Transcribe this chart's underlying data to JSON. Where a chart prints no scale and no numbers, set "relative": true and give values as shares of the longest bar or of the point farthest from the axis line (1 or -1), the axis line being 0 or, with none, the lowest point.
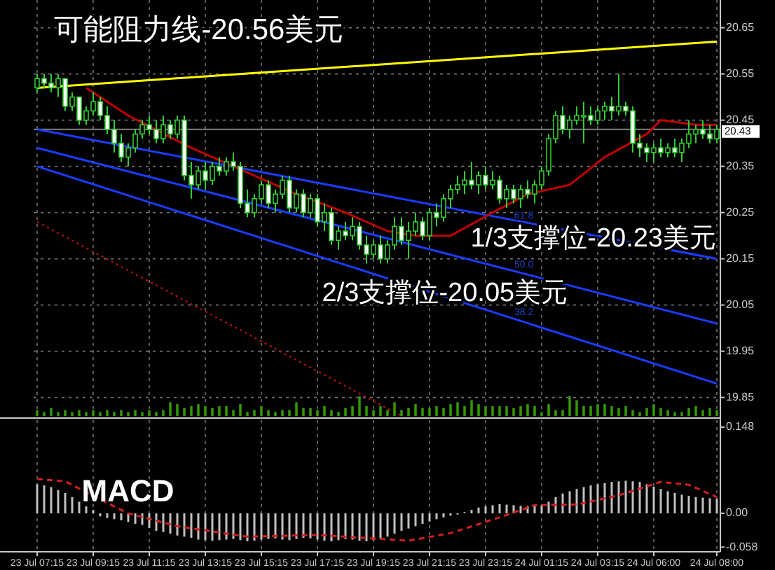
{
  "chart_data": [
    {
      "type": "candlestick",
      "color": "#33cc33",
      "tick_labels": "y",
      "grid": true,
      "categories": [
        null,
        null,
        null,
        null,
        null,
        null,
        null,
        null,
        null,
        null,
        null,
        null,
        null,
        null,
        null,
        null,
        null,
        null,
        null,
        null,
        null,
        null,
        null,
        null,
        null,
        null,
        null,
        null,
        null,
        null,
        null,
        null,
        null,
        null,
        null,
        null,
        null,
        null,
        null,
        null,
        null,
        null,
        null,
        null,
        null,
        null,
        null,
        null,
        null,
        null,
        null,
        null,
        null,
        null,
        null,
        null,
        null,
        null,
        null,
        null,
        null,
        null,
        null,
        null,
        null,
        null,
        null,
        null,
        null,
        null,
        null,
        null,
        null,
        null,
        null,
        null,
        null,
        null,
        null,
        null,
        null,
        null,
        null,
        null,
        null,
        null,
        null,
        null,
        null,
        null,
        null,
        null,
        null,
        null,
        null,
        null,
        null,
        null
      ],
      "ohlc": [
        [
          20.52,
          20.55,
          20.51,
          20.54
        ],
        [
          20.54,
          20.55,
          20.52,
          20.53
        ],
        [
          20.53,
          20.55,
          20.51,
          20.52
        ],
        [
          20.52,
          20.55,
          20.5,
          20.54
        ],
        [
          20.54,
          20.54,
          20.47,
          20.48
        ],
        [
          20.48,
          20.51,
          20.47,
          20.5
        ],
        [
          20.5,
          20.5,
          20.44,
          20.45
        ],
        [
          20.45,
          20.48,
          20.44,
          20.47
        ],
        [
          20.47,
          20.51,
          20.46,
          20.49
        ],
        [
          20.49,
          20.5,
          20.45,
          20.46
        ],
        [
          20.46,
          20.48,
          20.42,
          20.43
        ],
        [
          20.43,
          20.45,
          20.38,
          20.4
        ],
        [
          20.4,
          20.42,
          20.36,
          20.37
        ],
        [
          20.37,
          20.4,
          20.35,
          20.39
        ],
        [
          20.39,
          20.43,
          20.38,
          20.42
        ],
        [
          20.42,
          20.45,
          20.41,
          20.44
        ],
        [
          20.44,
          20.46,
          20.42,
          20.43
        ],
        [
          20.43,
          20.45,
          20.4,
          20.41
        ],
        [
          20.41,
          20.46,
          20.4,
          20.44
        ],
        [
          20.44,
          20.45,
          20.41,
          20.42
        ],
        [
          20.42,
          20.46,
          20.41,
          20.45
        ],
        [
          20.45,
          20.46,
          20.32,
          20.33
        ],
        [
          20.33,
          20.36,
          20.28,
          20.31
        ],
        [
          20.31,
          20.35,
          20.3,
          20.34
        ],
        [
          20.34,
          20.36,
          20.3,
          20.32
        ],
        [
          20.32,
          20.36,
          20.31,
          20.35
        ],
        [
          20.35,
          20.37,
          20.33,
          20.34
        ],
        [
          20.34,
          20.37,
          20.33,
          20.36
        ],
        [
          20.36,
          20.38,
          20.34,
          20.35
        ],
        [
          20.35,
          20.36,
          20.26,
          20.27
        ],
        [
          20.27,
          20.3,
          20.24,
          20.25
        ],
        [
          20.25,
          20.29,
          20.24,
          20.28
        ],
        [
          20.28,
          20.32,
          20.27,
          20.31
        ],
        [
          20.31,
          20.32,
          20.26,
          20.27
        ],
        [
          20.27,
          20.3,
          20.25,
          20.29
        ],
        [
          20.29,
          20.33,
          20.28,
          20.32
        ],
        [
          20.32,
          20.33,
          20.25,
          20.26
        ],
        [
          20.26,
          20.3,
          20.25,
          20.29
        ],
        [
          20.29,
          20.3,
          20.24,
          20.25
        ],
        [
          20.25,
          20.29,
          20.24,
          20.28
        ],
        [
          20.28,
          20.29,
          20.22,
          20.23
        ],
        [
          20.23,
          20.27,
          20.21,
          20.25
        ],
        [
          20.25,
          20.26,
          20.18,
          20.19
        ],
        [
          20.19,
          20.22,
          20.17,
          20.21
        ],
        [
          20.21,
          20.23,
          20.19,
          20.2
        ],
        [
          20.2,
          20.24,
          20.19,
          20.22
        ],
        [
          20.22,
          20.23,
          20.17,
          20.18
        ],
        [
          20.18,
          20.2,
          20.14,
          20.16
        ],
        [
          20.16,
          20.19,
          20.15,
          20.18
        ],
        [
          20.18,
          20.2,
          20.14,
          20.15
        ],
        [
          20.15,
          20.19,
          20.14,
          20.18
        ],
        [
          20.18,
          20.24,
          20.17,
          20.22
        ],
        [
          20.22,
          20.24,
          20.18,
          20.19
        ],
        [
          20.19,
          20.23,
          20.15,
          20.21
        ],
        [
          20.21,
          20.25,
          20.2,
          20.23
        ],
        [
          20.23,
          20.24,
          20.19,
          20.2
        ],
        [
          20.2,
          20.26,
          20.19,
          20.25
        ],
        [
          20.25,
          20.27,
          20.22,
          20.24
        ],
        [
          20.24,
          20.29,
          20.23,
          20.28
        ],
        [
          20.28,
          20.31,
          20.26,
          20.3
        ],
        [
          20.3,
          20.33,
          20.29,
          20.31
        ],
        [
          20.31,
          20.34,
          20.29,
          20.32
        ],
        [
          20.32,
          20.36,
          20.3,
          20.31
        ],
        [
          20.31,
          20.34,
          20.29,
          20.33
        ],
        [
          20.33,
          20.35,
          20.3,
          20.31
        ],
        [
          20.31,
          20.34,
          20.3,
          20.32
        ],
        [
          20.32,
          20.33,
          20.27,
          20.28
        ],
        [
          20.28,
          20.31,
          20.26,
          20.3
        ],
        [
          20.3,
          20.31,
          20.27,
          20.28
        ],
        [
          20.28,
          20.31,
          20.26,
          20.3
        ],
        [
          20.3,
          20.32,
          20.28,
          20.29
        ],
        [
          20.29,
          20.32,
          20.27,
          20.31
        ],
        [
          20.31,
          20.35,
          20.3,
          20.34
        ],
        [
          20.34,
          20.42,
          20.33,
          20.41
        ],
        [
          20.41,
          20.47,
          20.4,
          20.46
        ],
        [
          20.46,
          20.48,
          20.42,
          20.43
        ],
        [
          20.43,
          20.46,
          20.41,
          20.45
        ],
        [
          20.45,
          20.48,
          20.44,
          20.46
        ],
        [
          20.46,
          20.49,
          20.4,
          20.46
        ],
        [
          20.46,
          20.48,
          20.44,
          20.45
        ],
        [
          20.45,
          20.48,
          20.44,
          20.47
        ],
        [
          20.47,
          20.49,
          20.45,
          20.48
        ],
        [
          20.48,
          20.5,
          20.45,
          20.47
        ],
        [
          20.47,
          20.55,
          20.46,
          20.48
        ],
        [
          20.48,
          20.49,
          20.46,
          20.47
        ],
        [
          20.47,
          20.48,
          20.38,
          20.4
        ],
        [
          20.4,
          20.42,
          20.37,
          20.39
        ],
        [
          20.39,
          20.4,
          20.36,
          20.38
        ],
        [
          20.38,
          20.4,
          20.36,
          20.39
        ],
        [
          20.39,
          20.41,
          20.37,
          20.38
        ],
        [
          20.38,
          20.4,
          20.37,
          20.39
        ],
        [
          20.39,
          20.41,
          20.37,
          20.38
        ],
        [
          20.38,
          20.41,
          20.36,
          20.4
        ],
        [
          20.4,
          20.45,
          20.39,
          20.42
        ],
        [
          20.42,
          20.44,
          20.4,
          20.43
        ],
        [
          20.43,
          20.45,
          20.41,
          20.42
        ],
        [
          20.42,
          20.44,
          20.4,
          20.41
        ],
        [
          20.41,
          20.44,
          20.4,
          20.43
        ]
      ],
      "series": [
        {
          "type": "line",
          "color": "#ffff00",
          "values": [
            20.52,
            null,
            null,
            null,
            null,
            null,
            null,
            null,
            null,
            null,
            null,
            null,
            null,
            null,
            null,
            null,
            null,
            null,
            null,
            null,
            null,
            null,
            null,
            null,
            null,
            null,
            null,
            null,
            null,
            null,
            null,
            null,
            null,
            null,
            null,
            null,
            null,
            null,
            null,
            null,
            null,
            null,
            null,
            null,
            null,
            null,
            null,
            null,
            null,
            null,
            null,
            null,
            null,
            null,
            null,
            null,
            null,
            null,
            null,
            null,
            null,
            null,
            null,
            null,
            null,
            null,
            null,
            null,
            null,
            null,
            null,
            null,
            null,
            null,
            null,
            null,
            null,
            null,
            null,
            null,
            null,
            null,
            null,
            null,
            null,
            null,
            null,
            null,
            null,
            null,
            null,
            null,
            null,
            null,
            null,
            null,
            null,
            20.62
          ]
        },
        {
          "type": "line",
          "color": "#1a3cff",
          "values": [
            20.43,
            null,
            null,
            null,
            null,
            null,
            null,
            null,
            null,
            null,
            null,
            null,
            null,
            null,
            null,
            null,
            null,
            null,
            null,
            null,
            null,
            null,
            null,
            null,
            null,
            null,
            null,
            null,
            null,
            null,
            null,
            null,
            null,
            null,
            null,
            null,
            null,
            null,
            null,
            null,
            null,
            null,
            null,
            null,
            null,
            null,
            null,
            null,
            null,
            null,
            null,
            null,
            null,
            null,
            null,
            null,
            null,
            null,
            null,
            null,
            null,
            null,
            null,
            null,
            null,
            null,
            null,
            null,
            null,
            null,
            null,
            null,
            null,
            null,
            null,
            null,
            null,
            null,
            null,
            null,
            null,
            null,
            null,
            null,
            null,
            null,
            null,
            null,
            null,
            null,
            null,
            null,
            null,
            null,
            null,
            null,
            null,
            20.15
          ]
        },
        {
          "type": "line",
          "color": "#1a3cff",
          "values": [
            20.39,
            null,
            null,
            null,
            null,
            null,
            null,
            null,
            null,
            null,
            null,
            null,
            null,
            null,
            null,
            null,
            null,
            null,
            null,
            null,
            null,
            null,
            null,
            null,
            null,
            null,
            null,
            null,
            null,
            null,
            null,
            null,
            null,
            null,
            null,
            null,
            null,
            null,
            null,
            null,
            null,
            null,
            null,
            null,
            null,
            null,
            null,
            null,
            null,
            null,
            null,
            null,
            null,
            null,
            null,
            null,
            null,
            null,
            null,
            null,
            null,
            null,
            null,
            null,
            null,
            null,
            null,
            null,
            null,
            null,
            null,
            null,
            null,
            null,
            null,
            null,
            null,
            null,
            null,
            null,
            null,
            null,
            null,
            null,
            null,
            null,
            null,
            null,
            null,
            null,
            null,
            null,
            null,
            null,
            null,
            null,
            null,
            20.01
          ]
        },
        {
          "type": "line",
          "color": "#1a3cff",
          "values": [
            20.35,
            null,
            null,
            null,
            null,
            null,
            null,
            null,
            null,
            null,
            null,
            null,
            null,
            null,
            null,
            null,
            null,
            null,
            null,
            null,
            null,
            null,
            null,
            null,
            null,
            null,
            null,
            null,
            null,
            null,
            null,
            null,
            null,
            null,
            null,
            null,
            null,
            null,
            null,
            null,
            null,
            null,
            null,
            null,
            null,
            null,
            null,
            null,
            null,
            null,
            null,
            null,
            null,
            null,
            null,
            null,
            null,
            null,
            null,
            null,
            null,
            null,
            null,
            null,
            null,
            null,
            null,
            null,
            null,
            null,
            null,
            null,
            null,
            null,
            null,
            null,
            null,
            null,
            null,
            null,
            null,
            null,
            null,
            null,
            null,
            null,
            null,
            null,
            null,
            null,
            null,
            null,
            null,
            null,
            null,
            null,
            null,
            19.88
          ]
        },
        {
          "type": "line",
          "color": "#c00000",
          "values": [
            null,
            null,
            null,
            null,
            null,
            null,
            null,
            20.52,
            null,
            null,
            null,
            null,
            null,
            20.46,
            null,
            null,
            null,
            null,
            null,
            null,
            null,
            null,
            20.39,
            null,
            null,
            null,
            null,
            null,
            20.35,
            null,
            null,
            null,
            null,
            null,
            null,
            null,
            null,
            20.29,
            null,
            null,
            null,
            null,
            null,
            null,
            20.25,
            null,
            null,
            null,
            null,
            null,
            20.21,
            null,
            null,
            null,
            20.2,
            null,
            null,
            null,
            null,
            20.2,
            null,
            null,
            null,
            null,
            null,
            20.25,
            null,
            null,
            null,
            null,
            20.29,
            null,
            null,
            null,
            null,
            null,
            20.31,
            null,
            null,
            null,
            null,
            20.37,
            null,
            null,
            null,
            null,
            null,
            20.42,
            null,
            20.45,
            null,
            null,
            null,
            null,
            20.44,
            null,
            null,
            20.44
          ]
        },
        {
          "type": "line",
          "color": "#b01010",
          "line_style": "dotted",
          "values": [
            20.23,
            null,
            null,
            null,
            null,
            null,
            null,
            null,
            null,
            null,
            null,
            null,
            null,
            null,
            null,
            null,
            null,
            null,
            null,
            null,
            null,
            null,
            null,
            null,
            null,
            null,
            null,
            null,
            null,
            null,
            null,
            null,
            null,
            null,
            null,
            null,
            null,
            null,
            null,
            null,
            null,
            null,
            null,
            null,
            null,
            null,
            null,
            null,
            null,
            null,
            null,
            null,
            19.81,
            null,
            null,
            null,
            null,
            null,
            null,
            null,
            null,
            null,
            null,
            null,
            null,
            null,
            null,
            null,
            null,
            null,
            null,
            null,
            null,
            null,
            null,
            null,
            null,
            null,
            null,
            null,
            null,
            null,
            null,
            null,
            null,
            null,
            null,
            null,
            null,
            null,
            null,
            null,
            null,
            null,
            null,
            null,
            null,
            null
          ]
        }
      ],
      "ylim": [
        19.81,
        20.71
      ],
      "yticks": [
        19.85,
        19.95,
        20.05,
        20.15,
        20.25,
        20.35,
        20.45,
        20.55,
        20.65
      ],
      "ref_lines": [
        {
          "axis": "y",
          "value": 20.43,
          "label": "20.43",
          "color": "#808080"
        }
      ],
      "annotations": [
        "可能阻力线-20.56美元",
        "1/3支撑位-20.23美元",
        "2/3支撑位-20.05美元",
        "61.8",
        "50.0",
        "38.2"
      ]
    },
    {
      "type": "bar",
      "relative": true,
      "tick_labels": false,
      "color": "#339900",
      "categories": [
        null,
        null,
        null,
        null,
        null,
        null,
        null,
        null,
        null,
        null,
        null,
        null,
        null,
        null,
        null,
        null,
        null,
        null,
        null,
        null,
        null,
        null,
        null,
        null,
        null,
        null,
        null,
        null,
        null,
        null,
        null,
        null,
        null,
        null,
        null,
        null,
        null,
        null,
        null,
        null,
        null,
        null,
        null,
        null,
        null,
        null,
        null,
        null,
        null,
        null,
        null,
        null,
        null,
        null,
        null,
        null,
        null,
        null,
        null,
        null,
        null,
        null,
        null,
        null,
        null,
        null,
        null,
        null,
        null,
        null,
        null,
        null,
        null,
        null,
        null,
        null,
        null,
        null,
        null,
        null,
        null,
        null,
        null,
        null,
        null,
        null,
        null,
        null,
        null,
        null,
        null,
        null,
        null,
        null,
        null,
        null,
        null,
        null
      ],
      "values": [
        0.3,
        0.2,
        0.4,
        0.2,
        0.3,
        0.2,
        0.3,
        0.2,
        0.3,
        0.2,
        0.3,
        0.2,
        0.3,
        0.2,
        0.3,
        0.2,
        0.3,
        0.2,
        0.3,
        0.7,
        0.6,
        0.4,
        0.5,
        0.6,
        0.5,
        0.4,
        0.5,
        0.5,
        0.3,
        0.6,
        0.2,
        0.3,
        0.5,
        0.3,
        0.2,
        0.3,
        0.3,
        0.7,
        0.4,
        0.4,
        0.3,
        0.5,
        0.3,
        0.2,
        0.4,
        0.5,
        1.0,
        0.5,
        0.3,
        0.5,
        0.3,
        0.7,
        0.3,
        0.4,
        0.6,
        0.4,
        0.4,
        0.5,
        0.4,
        0.6,
        0.7,
        0.5,
        0.8,
        0.6,
        0.5,
        0.5,
        0.5,
        0.5,
        0.4,
        0.5,
        0.6,
        0.5,
        0.2,
        0.6,
        0.3,
        0.3,
        1.0,
        0.8,
        0.5,
        0.5,
        0.6,
        0.6,
        0.5,
        0.4,
        0.5,
        0.3,
        0.2,
        0.4,
        0.6,
        0.4,
        0.3,
        0.2,
        0.2,
        0.4,
        0.5,
        0.3,
        0.4,
        0.3
      ]
    },
    {
      "type": "bar",
      "title": "MACD",
      "grid": "x",
      "categories": [
        "23 Jul 07:15",
        null,
        null,
        null,
        null,
        null,
        null,
        null,
        "23 Jul 09:15",
        null,
        null,
        null,
        null,
        null,
        null,
        null,
        "23 Jul 11:15",
        null,
        null,
        null,
        null,
        null,
        null,
        null,
        "23 Jul 13:15",
        null,
        null,
        null,
        null,
        null,
        null,
        null,
        "23 Jul 15:15",
        null,
        null,
        null,
        null,
        null,
        null,
        null,
        "23 Jul 17:15",
        null,
        null,
        null,
        null,
        null,
        null,
        null,
        "23 Jul 19:15",
        null,
        null,
        null,
        null,
        null,
        null,
        null,
        "23 Jul 21:15",
        null,
        null,
        null,
        null,
        null,
        null,
        null,
        "23 Jul 23:15",
        null,
        null,
        null,
        null,
        null,
        null,
        null,
        "24 Jul 01:15",
        null,
        null,
        null,
        null,
        null,
        null,
        null,
        "24 Jul 03:15",
        null,
        null,
        null,
        null,
        null,
        null,
        null,
        "24 Jul 06:00",
        null,
        null,
        null,
        null,
        null,
        null,
        null,
        null,
        "24 Jul 08:00"
      ],
      "series": [
        {
          "type": "bar",
          "color": "#c0c0c0",
          "values": [
            0.05,
            0.048,
            0.045,
            0.04,
            0.035,
            0.028,
            0.02,
            0.012,
            0.006,
            -0.005,
            -0.008,
            -0.01,
            -0.012,
            -0.015,
            -0.018,
            -0.02,
            -0.025,
            -0.03,
            -0.032,
            -0.035,
            -0.038,
            -0.04,
            -0.042,
            -0.045,
            -0.046,
            -0.047,
            -0.046,
            -0.045,
            -0.044,
            -0.046,
            -0.048,
            -0.047,
            -0.045,
            -0.044,
            -0.043,
            -0.045,
            -0.046,
            -0.044,
            -0.042,
            -0.043,
            -0.045,
            -0.047,
            -0.048,
            -0.046,
            -0.044,
            -0.045,
            -0.047,
            -0.048,
            -0.046,
            -0.043,
            -0.04,
            -0.035,
            -0.03,
            -0.026,
            -0.022,
            -0.018,
            -0.014,
            -0.01,
            -0.007,
            -0.004,
            -0.002,
            0.002,
            0.006,
            0.01,
            0.012,
            0.014,
            0.016,
            0.015,
            0.014,
            0.013,
            0.012,
            0.012,
            0.014,
            0.02,
            0.028,
            0.034,
            0.038,
            0.042,
            0.045,
            0.048,
            0.05,
            0.052,
            0.054,
            0.055,
            0.056,
            0.055,
            0.054,
            0.05,
            0.046,
            0.042,
            0.038,
            0.035,
            0.032,
            0.03,
            0.028,
            0.027,
            0.026,
            0.025
          ]
        },
        {
          "type": "line",
          "color": "#d02020",
          "line_style": "dashed",
          "values": [
            0.059,
            null,
            null,
            null,
            0.055,
            null,
            null,
            null,
            0.03,
            null,
            null,
            null,
            null,
            0.0,
            null,
            null,
            null,
            null,
            null,
            null,
            -0.022,
            null,
            null,
            null,
            null,
            null,
            null,
            null,
            null,
            null,
            -0.04,
            null,
            null,
            null,
            null,
            null,
            null,
            null,
            null,
            null,
            -0.037,
            null,
            null,
            null,
            null,
            null,
            null,
            null,
            null,
            null,
            null,
            null,
            null,
            -0.047,
            null,
            null,
            null,
            null,
            null,
            -0.034,
            null,
            null,
            null,
            null,
            null,
            null,
            -0.007,
            null,
            null,
            null,
            null,
            0.014,
            null,
            null,
            null,
            null,
            null,
            0.015,
            null,
            null,
            null,
            null,
            null,
            0.031,
            null,
            null,
            null,
            null,
            null,
            0.054,
            null,
            null,
            null,
            0.049,
            null,
            null,
            null,
            0.028
          ]
        }
      ],
      "ylim": [
        -0.066,
        0.16
      ],
      "yticks": [
        {
          "value": 0.148,
          "label": "0.148"
        },
        {
          "value": 0,
          "label": "0.00"
        },
        {
          "value": -0.058,
          "label": "-0.058"
        }
      ]
    }
  ]
}
